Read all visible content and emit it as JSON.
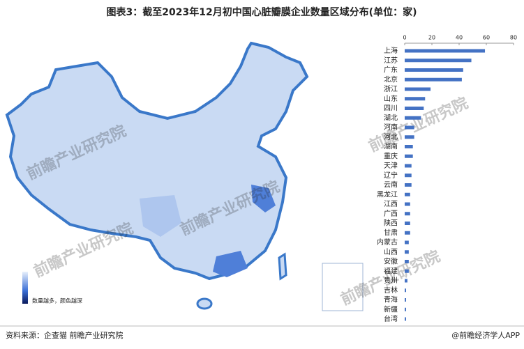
{
  "chart_data": {
    "type": "bar",
    "orientation": "horizontal",
    "title": "图表3：截至2023年12月初中国心脏瓣膜企业数量区域分布(单位：家)",
    "categories": [
      "上海",
      "江苏",
      "广东",
      "北京",
      "浙江",
      "山东",
      "四川",
      "湖北",
      "河南",
      "河北",
      "湖南",
      "重庆",
      "天津",
      "辽宁",
      "云南",
      "黑龙江",
      "江西",
      "广西",
      "陕西",
      "甘肃",
      "内蒙古",
      "山西",
      "安徽",
      "福建",
      "贵州",
      "吉林",
      "青海",
      "新疆",
      "台湾"
    ],
    "values": [
      59,
      49,
      43,
      42,
      19,
      15,
      14,
      12,
      7,
      7,
      6,
      6,
      5,
      5,
      5,
      4,
      4,
      4,
      4,
      4,
      3,
      3,
      3,
      3,
      2,
      1,
      1,
      1,
      1
    ],
    "color": "#4472c4",
    "xlim": [
      0,
      80
    ],
    "xticks": [
      0,
      20,
      40,
      60,
      80
    ]
  },
  "map": {
    "legend_label": "数量越多，颜色越深",
    "watermark": "前瞻产业研究院"
  },
  "footer": {
    "source": "资料来源：企查猫 前瞻产业研究院",
    "brand": "@前瞻经济学人APP"
  }
}
